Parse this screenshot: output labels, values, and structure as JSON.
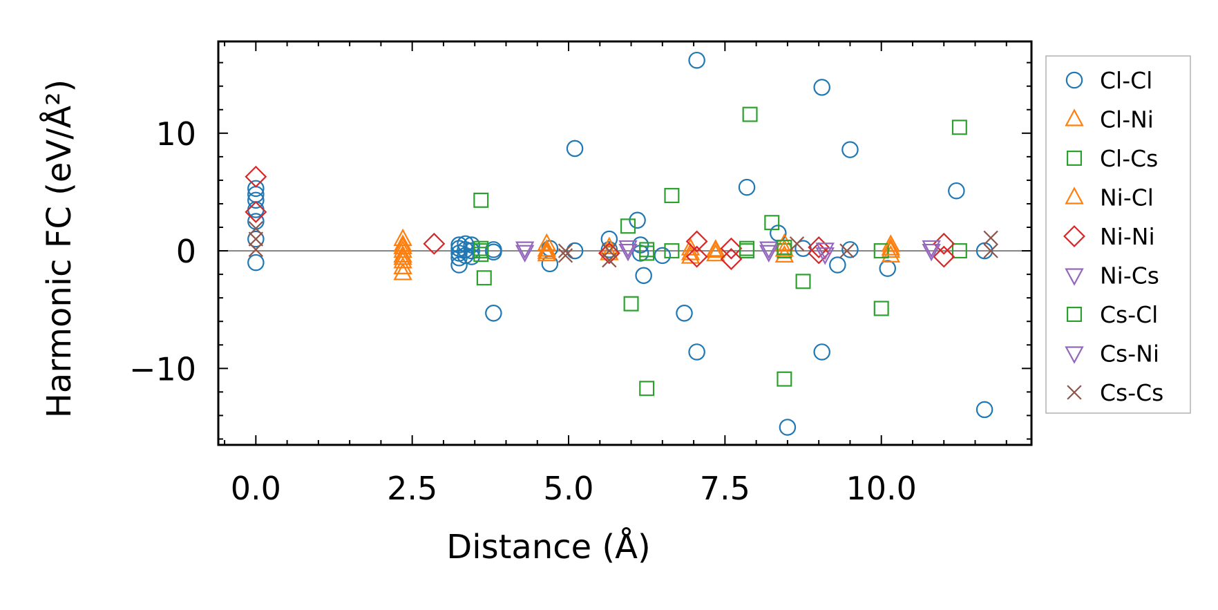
{
  "chart_data": {
    "type": "scatter",
    "title": "",
    "xlabel": "Distance (Å)",
    "ylabel": "Harmonic FC (eV/Å²)",
    "xlim": [
      -0.6,
      12.4
    ],
    "ylim": [
      -16.5,
      17.8
    ],
    "xticks": [
      0.0,
      2.5,
      5.0,
      7.5,
      10.0
    ],
    "xtick_labels": [
      "0.0",
      "2.5",
      "5.0",
      "7.5",
      "10.0"
    ],
    "yticks": [
      -10,
      0,
      10
    ],
    "ytick_labels": [
      "−10",
      "0",
      "10"
    ],
    "zero_line": true,
    "legend_position": "right-outside",
    "colors": {
      "blue": "#1f77b4",
      "orange": "#ff7f0e",
      "green": "#2ca02c",
      "red": "#d62728",
      "purple": "#9467bd",
      "brown": "#8c564b",
      "zero_line": "#808080"
    },
    "series": [
      {
        "name": "Cl-Cl",
        "marker": "circle",
        "color": "#1f77b4",
        "points": [
          [
            0,
            5.3
          ],
          [
            0,
            4.8
          ],
          [
            0,
            4.3
          ],
          [
            0,
            3.5
          ],
          [
            0,
            2.5
          ],
          [
            0,
            1.0
          ],
          [
            0,
            -1.0
          ],
          [
            3.25,
            0.5
          ],
          [
            3.25,
            0.2
          ],
          [
            3.25,
            -0.2
          ],
          [
            3.25,
            -0.6
          ],
          [
            3.25,
            -1.2
          ],
          [
            3.35,
            0.6
          ],
          [
            3.35,
            0.1
          ],
          [
            3.35,
            -0.4
          ],
          [
            3.45,
            0.5
          ],
          [
            3.45,
            0.0
          ],
          [
            3.45,
            -0.5
          ],
          [
            3.8,
            0.1
          ],
          [
            3.8,
            -0.1
          ],
          [
            3.8,
            -5.3
          ],
          [
            4.7,
            0.2
          ],
          [
            4.7,
            -1.1
          ],
          [
            5.1,
            8.7
          ],
          [
            5.1,
            0.0
          ],
          [
            5.65,
            1.0
          ],
          [
            5.65,
            0.1
          ],
          [
            6.1,
            2.6
          ],
          [
            6.15,
            0.5
          ],
          [
            6.15,
            -0.2
          ],
          [
            6.2,
            -2.1
          ],
          [
            6.5,
            -0.4
          ],
          [
            6.85,
            -5.3
          ],
          [
            7.05,
            16.2
          ],
          [
            7.05,
            -8.6
          ],
          [
            7.85,
            5.4
          ],
          [
            8.35,
            1.5
          ],
          [
            8.5,
            -15.0
          ],
          [
            8.75,
            0.2
          ],
          [
            9.05,
            13.9
          ],
          [
            9.05,
            -8.6
          ],
          [
            9.3,
            -1.2
          ],
          [
            9.5,
            8.6
          ],
          [
            9.5,
            0.1
          ],
          [
            10.1,
            -1.5
          ],
          [
            11.2,
            5.1
          ],
          [
            11.65,
            -13.5
          ],
          [
            11.65,
            0.0
          ]
        ]
      },
      {
        "name": "Cl-Ni",
        "marker": "triangle-up",
        "color": "#ff7f0e",
        "points": [
          [
            2.35,
            1.0
          ],
          [
            2.35,
            0.5
          ],
          [
            2.35,
            0.0
          ],
          [
            2.35,
            -0.4
          ],
          [
            2.35,
            -0.9
          ],
          [
            2.35,
            -1.4
          ],
          [
            2.35,
            -1.9
          ],
          [
            4.65,
            0.6
          ],
          [
            4.65,
            0.1
          ],
          [
            4.65,
            -0.3
          ],
          [
            5.65,
            0.3
          ],
          [
            5.65,
            -0.2
          ],
          [
            6.95,
            0.2
          ],
          [
            6.95,
            -0.5
          ],
          [
            7.35,
            0.1
          ],
          [
            7.35,
            -0.3
          ],
          [
            8.45,
            0.6
          ],
          [
            8.45,
            -0.4
          ],
          [
            10.15,
            0.5
          ],
          [
            10.15,
            0.0
          ],
          [
            10.15,
            -0.4
          ]
        ]
      },
      {
        "name": "Cl-Cs",
        "marker": "square",
        "color": "#2ca02c",
        "points": [
          [
            3.6,
            4.3
          ],
          [
            3.6,
            0.2
          ],
          [
            3.6,
            -0.3
          ],
          [
            3.65,
            -2.3
          ],
          [
            5.95,
            2.1
          ],
          [
            6.0,
            -4.5
          ],
          [
            6.25,
            -11.7
          ],
          [
            6.25,
            0.1
          ],
          [
            6.65,
            4.7
          ],
          [
            6.65,
            0.0
          ],
          [
            7.9,
            11.6
          ],
          [
            7.85,
            0.0
          ],
          [
            8.25,
            2.4
          ],
          [
            8.45,
            -10.9
          ],
          [
            8.45,
            0.0
          ],
          [
            8.75,
            -2.6
          ],
          [
            10.0,
            -4.9
          ],
          [
            10.0,
            0.0
          ],
          [
            11.25,
            10.5
          ],
          [
            11.25,
            0.0
          ]
        ]
      },
      {
        "name": "Ni-Cl",
        "marker": "triangle-up",
        "color": "#ff7f0e",
        "points": [
          [
            2.35,
            0.3
          ],
          [
            2.35,
            -0.6
          ],
          [
            4.65,
            -0.1
          ],
          [
            6.95,
            -0.2
          ],
          [
            7.35,
            0.0
          ],
          [
            8.45,
            0.1
          ],
          [
            10.15,
            0.2
          ]
        ]
      },
      {
        "name": "Ni-Ni",
        "marker": "diamond",
        "color": "#d62728",
        "points": [
          [
            0,
            6.3
          ],
          [
            0,
            3.3
          ],
          [
            2.85,
            0.6
          ],
          [
            5.65,
            -0.2
          ],
          [
            7.05,
            0.8
          ],
          [
            7.05,
            -0.5
          ],
          [
            7.6,
            0.2
          ],
          [
            7.6,
            -0.7
          ],
          [
            9.0,
            0.3
          ],
          [
            9.0,
            -0.2
          ],
          [
            11.0,
            0.6
          ],
          [
            11.0,
            -0.5
          ]
        ]
      },
      {
        "name": "Ni-Cs",
        "marker": "triangle-down",
        "color": "#9467bd",
        "points": [
          [
            4.3,
            0.2
          ],
          [
            5.95,
            0.0
          ],
          [
            8.2,
            0.2
          ],
          [
            9.1,
            0.1
          ],
          [
            10.8,
            0.3
          ]
        ]
      },
      {
        "name": "Cs-Cl",
        "marker": "square",
        "color": "#2ca02c",
        "points": [
          [
            3.6,
            0.0
          ],
          [
            6.25,
            -0.2
          ],
          [
            7.85,
            0.2
          ],
          [
            8.45,
            0.3
          ]
        ]
      },
      {
        "name": "Cs-Ni",
        "marker": "triangle-down",
        "color": "#9467bd",
        "points": [
          [
            4.3,
            -0.1
          ],
          [
            5.95,
            0.3
          ],
          [
            8.2,
            -0.1
          ],
          [
            9.1,
            -0.3
          ],
          [
            10.8,
            0.0
          ]
        ]
      },
      {
        "name": "Cs-Cs",
        "marker": "x",
        "color": "#8c564b",
        "points": [
          [
            0,
            1.9
          ],
          [
            0,
            1.0
          ],
          [
            0,
            0.1
          ],
          [
            4.95,
            0.0
          ],
          [
            4.95,
            -0.4
          ],
          [
            5.65,
            0.0
          ],
          [
            5.65,
            -0.8
          ],
          [
            8.65,
            0.6
          ],
          [
            9.45,
            0.0
          ],
          [
            11.75,
            1.1
          ],
          [
            11.75,
            0.0
          ]
        ]
      }
    ]
  }
}
